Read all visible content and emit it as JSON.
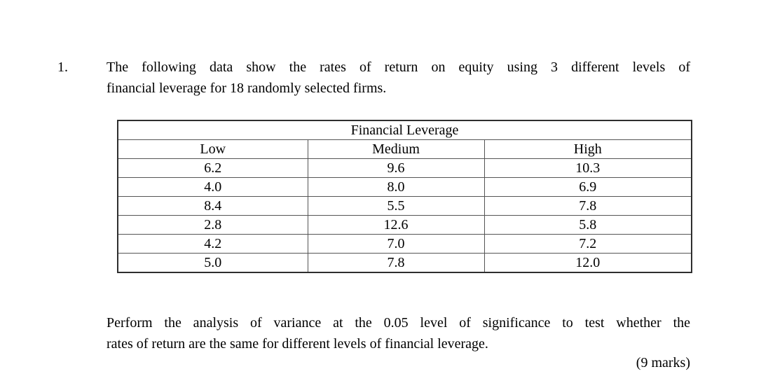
{
  "document": {
    "question_number": "1.",
    "intro_lines": [
      "The following data show the rates of return on equity using 3 different levels of",
      "financial leverage for 18 randomly selected firms."
    ],
    "task_lines": [
      "Perform the analysis of variance at the 0.05 level of significance to test whether the",
      "rates of return are the same for different levels of financial leverage."
    ],
    "marks": "(9 marks)"
  },
  "table": {
    "title": "Financial Leverage",
    "columns": [
      "Low",
      "Medium",
      "High"
    ],
    "rows": [
      [
        "6.2",
        "9.6",
        "10.3"
      ],
      [
        "4.0",
        "8.0",
        "6.9"
      ],
      [
        "8.4",
        "5.5",
        "7.8"
      ],
      [
        "2.8",
        "12.6",
        "5.8"
      ],
      [
        "4.2",
        "7.0",
        "7.2"
      ],
      [
        "5.0",
        "7.8",
        "12.0"
      ]
    ]
  }
}
